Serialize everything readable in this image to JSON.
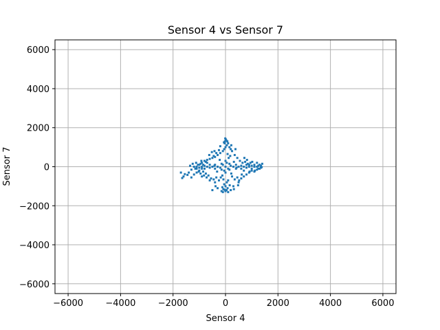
{
  "chart_data": {
    "type": "scatter",
    "title": "Sensor 4 vs Sensor 7",
    "xlabel": "Sensor 4",
    "ylabel": "Sensor 7",
    "xlim": [
      -6500,
      6500
    ],
    "ylim": [
      -6500,
      6500
    ],
    "x_ticks": [
      -6000,
      -4000,
      -2000,
      0,
      2000,
      4000,
      6000
    ],
    "y_ticks": [
      -6000,
      -4000,
      -2000,
      0,
      2000,
      4000,
      6000
    ],
    "x_tick_labels": [
      "−6000",
      "−4000",
      "−2000",
      "0",
      "2000",
      "4000",
      "6000"
    ],
    "y_tick_labels": [
      "−6000",
      "−4000",
      "−2000",
      "0",
      "2000",
      "4000",
      "6000"
    ],
    "grid": true,
    "marker_color": "#1f77b4",
    "points": [
      [
        0,
        0
      ],
      [
        -100,
        100
      ],
      [
        100,
        -100
      ],
      [
        200,
        50
      ],
      [
        -200,
        -50
      ],
      [
        50,
        200
      ],
      [
        -50,
        -200
      ],
      [
        300,
        0
      ],
      [
        -300,
        0
      ],
      [
        0,
        300
      ],
      [
        0,
        -300
      ],
      [
        150,
        150
      ],
      [
        -150,
        -150
      ],
      [
        150,
        -150
      ],
      [
        -150,
        150
      ],
      [
        400,
        100
      ],
      [
        -400,
        -100
      ],
      [
        400,
        -100
      ],
      [
        -400,
        100
      ],
      [
        500,
        0
      ],
      [
        -500,
        0
      ],
      [
        600,
        50
      ],
      [
        -600,
        -50
      ],
      [
        700,
        0
      ],
      [
        -700,
        0
      ],
      [
        800,
        100
      ],
      [
        -800,
        -100
      ],
      [
        900,
        0
      ],
      [
        -900,
        0
      ],
      [
        1000,
        50
      ],
      [
        -1000,
        -50
      ],
      [
        1100,
        100
      ],
      [
        -1100,
        -100
      ],
      [
        1200,
        0
      ],
      [
        1300,
        100
      ],
      [
        1400,
        150
      ],
      [
        1350,
        -50
      ],
      [
        1250,
        -100
      ],
      [
        -1200,
        0
      ],
      [
        -1300,
        -150
      ],
      [
        -1600,
        -500
      ],
      [
        -1650,
        -580
      ],
      [
        -1550,
        -380
      ],
      [
        -1450,
        -420
      ],
      [
        -1400,
        -300
      ],
      [
        -1700,
        -300
      ],
      [
        -1300,
        -550
      ],
      [
        -900,
        -500
      ],
      [
        -1200,
        -400
      ],
      [
        -1100,
        -300
      ],
      [
        -1000,
        -200
      ],
      [
        -800,
        300
      ],
      [
        -900,
        200
      ],
      [
        -700,
        350
      ],
      [
        -600,
        400
      ],
      [
        -500,
        450
      ],
      [
        -400,
        500
      ],
      [
        -300,
        600
      ],
      [
        -200,
        700
      ],
      [
        -100,
        800
      ],
      [
        -50,
        900
      ],
      [
        0,
        1000
      ],
      [
        50,
        1100
      ],
      [
        100,
        1200
      ],
      [
        -20,
        1300
      ],
      [
        10,
        1400
      ],
      [
        -10,
        1450
      ],
      [
        30,
        1350
      ],
      [
        -60,
        1250
      ],
      [
        100,
        -700
      ],
      [
        50,
        -800
      ],
      [
        -50,
        -900
      ],
      [
        0,
        -1000
      ],
      [
        80,
        -1100
      ],
      [
        -80,
        -1150
      ],
      [
        0,
        -1250
      ],
      [
        100,
        -1300
      ],
      [
        -150,
        -1250
      ],
      [
        200,
        -1200
      ],
      [
        300,
        -1000
      ],
      [
        -300,
        -1100
      ],
      [
        -500,
        -1200
      ],
      [
        -400,
        -800
      ],
      [
        -600,
        -700
      ],
      [
        500,
        -800
      ],
      [
        600,
        -600
      ],
      [
        700,
        -500
      ],
      [
        800,
        -400
      ],
      [
        900,
        -300
      ],
      [
        1000,
        -200
      ],
      [
        1100,
        -250
      ],
      [
        1200,
        -150
      ],
      [
        1300,
        -100
      ],
      [
        350,
        600
      ],
      [
        450,
        450
      ],
      [
        550,
        300
      ],
      [
        650,
        200
      ],
      [
        750,
        250
      ],
      [
        850,
        150
      ],
      [
        950,
        200
      ],
      [
        -750,
        250
      ],
      [
        -850,
        100
      ],
      [
        -950,
        150
      ],
      [
        -1050,
        100
      ],
      [
        -1150,
        -100
      ],
      [
        250,
        800
      ],
      [
        200,
        900
      ],
      [
        150,
        1000
      ],
      [
        -250,
        850
      ],
      [
        -350,
        700
      ],
      [
        -450,
        550
      ],
      [
        -550,
        -600
      ],
      [
        -650,
        -450
      ],
      [
        -750,
        -350
      ],
      [
        -850,
        -250
      ],
      [
        -950,
        -350
      ],
      [
        250,
        -500
      ],
      [
        350,
        -650
      ],
      [
        450,
        -550
      ],
      [
        -250,
        -700
      ],
      [
        -350,
        -550
      ],
      [
        -450,
        -650
      ],
      [
        600,
        -100
      ],
      [
        -600,
        100
      ],
      [
        700,
        -200
      ],
      [
        -700,
        200
      ],
      [
        800,
        -50
      ],
      [
        -800,
        50
      ],
      [
        900,
        100
      ],
      [
        -900,
        -100
      ],
      [
        1000,
        -100
      ],
      [
        -1000,
        100
      ],
      [
        1100,
        0
      ],
      [
        -1100,
        0
      ],
      [
        1200,
        200
      ],
      [
        1250,
        50
      ],
      [
        1350,
        50
      ],
      [
        1380,
        -20
      ],
      [
        -1250,
        150
      ],
      [
        -1350,
        50
      ],
      [
        120,
        450
      ],
      [
        -120,
        -450
      ],
      [
        220,
        -350
      ],
      [
        -220,
        350
      ],
      [
        320,
        250
      ],
      [
        -320,
        -250
      ],
      [
        420,
        -50
      ],
      [
        -420,
        50
      ],
      [
        80,
        650
      ],
      [
        -80,
        -650
      ],
      [
        180,
        550
      ],
      [
        -180,
        -550
      ],
      [
        40,
        -1200
      ],
      [
        -40,
        -1180
      ],
      [
        -120,
        -1050
      ],
      [
        160,
        -950
      ],
      [
        -200,
        1050
      ],
      [
        220,
        1100
      ],
      [
        -30,
        1200
      ],
      [
        70,
        1300
      ],
      [
        -100,
        -1300
      ],
      [
        320,
        -1150
      ],
      [
        -380,
        -1000
      ],
      [
        380,
        900
      ],
      [
        -420,
        800
      ],
      [
        480,
        -950
      ],
      [
        -520,
        750
      ],
      [
        520,
        -700
      ],
      [
        -620,
        600
      ],
      [
        620,
        -400
      ],
      [
        -720,
        -550
      ],
      [
        720,
        450
      ],
      [
        -820,
        -450
      ],
      [
        820,
        350
      ],
      [
        -920,
        300
      ],
      [
        920,
        -250
      ],
      [
        -1020,
        -250
      ],
      [
        1020,
        250
      ],
      [
        -1120,
        200
      ],
      [
        1120,
        -200
      ]
    ]
  }
}
